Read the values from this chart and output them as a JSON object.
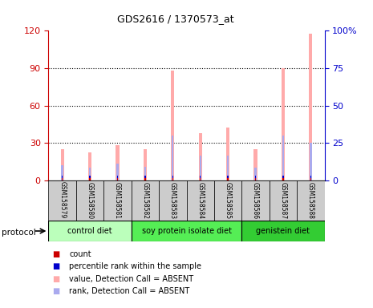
{
  "title": "GDS2616 / 1370573_at",
  "samples": [
    "GSM158579",
    "GSM158580",
    "GSM158581",
    "GSM158582",
    "GSM158583",
    "GSM158584",
    "GSM158585",
    "GSM158586",
    "GSM158587",
    "GSM158588"
  ],
  "value_absent": [
    25,
    22,
    28,
    25,
    88,
    38,
    42,
    25,
    90,
    118
  ],
  "rank_absent": [
    12,
    10,
    13,
    11,
    36,
    20,
    20,
    10,
    36,
    30
  ],
  "count_values": [
    1.5,
    1.5,
    1.5,
    1.5,
    1.5,
    1.5,
    1.5,
    1.5,
    1.5,
    1.5
  ],
  "rank_marker_height": [
    2,
    2,
    2,
    2,
    2,
    2,
    2,
    2,
    2,
    2
  ],
  "groups": [
    {
      "label": "control diet",
      "start": 0,
      "end": 3
    },
    {
      "label": "soy protein isolate diet",
      "start": 3,
      "end": 7
    },
    {
      "label": "genistein diet",
      "start": 7,
      "end": 10
    }
  ],
  "group_colors": [
    "#bbffbb",
    "#55ee55",
    "#33cc33"
  ],
  "ylim_left": [
    0,
    120
  ],
  "ylim_right": [
    0,
    100
  ],
  "yticks_left": [
    0,
    30,
    60,
    90,
    120
  ],
  "yticks_left_labels": [
    "0",
    "30",
    "60",
    "90",
    "120"
  ],
  "yticks_right": [
    0,
    25,
    50,
    75,
    100
  ],
  "yticks_right_labels": [
    "0",
    "25",
    "50",
    "75",
    "100%"
  ],
  "left_tick_color": "#cc0000",
  "right_tick_color": "#0000cc",
  "value_color": "#ffaaaa",
  "rank_color": "#aaaaee",
  "count_color": "#cc0000",
  "prank_color": "#0000cc",
  "sample_bg": "#cccccc",
  "legend_items": [
    {
      "label": "count",
      "color": "#cc0000"
    },
    {
      "label": "percentile rank within the sample",
      "color": "#0000cc"
    },
    {
      "label": "value, Detection Call = ABSENT",
      "color": "#ffaaaa"
    },
    {
      "label": "rank, Detection Call = ABSENT",
      "color": "#aaaaee"
    }
  ]
}
